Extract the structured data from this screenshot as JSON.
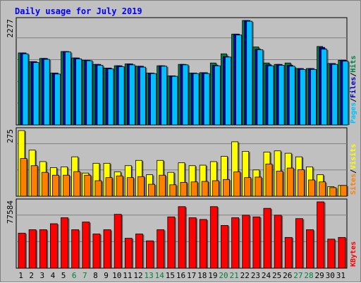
{
  "chart_data": {
    "type": "bar",
    "title": "Daily usage for July 2019",
    "grid": true,
    "categories": [
      "1",
      "2",
      "3",
      "4",
      "5",
      "6",
      "7",
      "8",
      "9",
      "10",
      "11",
      "12",
      "13",
      "14",
      "15",
      "16",
      "17",
      "18",
      "19",
      "20",
      "21",
      "22",
      "23",
      "24",
      "25",
      "26",
      "27",
      "28",
      "29",
      "30",
      "31"
    ],
    "weekend_days": [
      "6",
      "7",
      "13",
      "14",
      "20",
      "21",
      "27",
      "28"
    ],
    "panels": [
      {
        "name": "hits",
        "max_label": "2277",
        "ylim": [
          0,
          2277
        ],
        "legend": [
          "Pages",
          "Files",
          "Hits"
        ],
        "series": [
          {
            "name": "Hits",
            "color": "#008040",
            "values": [
              1570,
              1380,
              1450,
              1130,
              1600,
              1460,
              1410,
              1320,
              1240,
              1290,
              1330,
              1280,
              1130,
              1290,
              1070,
              1320,
              1130,
              1140,
              1350,
              1550,
              1980,
              2277,
              1700,
              1350,
              1320,
              1350,
              1230,
              1230,
              1710,
              1340,
              1410
            ]
          },
          {
            "name": "Files",
            "color": "#0000c0",
            "values": [
              1570,
              1380,
              1450,
              1130,
              1600,
              1460,
              1410,
              1320,
              1240,
              1290,
              1330,
              1280,
              1130,
              1290,
              1070,
              1320,
              1130,
              1140,
              1300,
              1490,
              1980,
              2277,
              1650,
              1310,
              1320,
              1300,
              1230,
              1230,
              1690,
              1340,
              1410
            ]
          },
          {
            "name": "Pages",
            "color": "#00c0ff",
            "values": [
              1550,
              1360,
              1430,
              1110,
              1590,
              1440,
              1400,
              1300,
              1220,
              1270,
              1310,
              1260,
              1120,
              1280,
              1060,
              1310,
              1120,
              1120,
              1290,
              1480,
              1960,
              2260,
              1640,
              1290,
              1300,
              1280,
              1210,
              1210,
              1650,
              1320,
              1390
            ]
          }
        ]
      },
      {
        "name": "visits",
        "max_label": "275",
        "ylim": [
          0,
          275
        ],
        "legend": [
          "Sites",
          "Visits"
        ],
        "series": [
          {
            "name": "Visits",
            "color": "#ffff00",
            "values": [
              275,
              193,
              145,
              120,
              123,
              165,
              97,
              138,
              138,
              102,
              128,
              150,
              90,
              150,
              100,
              140,
              128,
              130,
              145,
              167,
              228,
              188,
              110,
              185,
              190,
              180,
              165,
              123,
              90,
              40,
              45
            ]
          },
          {
            "name": "Sites",
            "color": "#ff8000",
            "values": [
              158,
              128,
              100,
              88,
              88,
              103,
              88,
              65,
              78,
              85,
              78,
              82,
              50,
              88,
              48,
              58,
              60,
              62,
              65,
              70,
              102,
              78,
              80,
              135,
              105,
              118,
              111,
              68,
              60,
              36,
              45
            ]
          }
        ]
      },
      {
        "name": "kbytes",
        "max_label": "77584",
        "ylim": [
          0,
          77584
        ],
        "legend": [
          "KBytes"
        ],
        "series": [
          {
            "name": "KBytes",
            "color": "#ff0000",
            "values": [
              41000,
              45000,
              45000,
              52000,
              59000,
              45000,
              54000,
              40000,
              45000,
              63000,
              35000,
              40000,
              32000,
              45000,
              60000,
              72000,
              59000,
              57000,
              72000,
              50000,
              59000,
              62000,
              60000,
              70000,
              62000,
              36000,
              58000,
              45000,
              77584,
              34000,
              36000
            ]
          }
        ]
      }
    ]
  }
}
